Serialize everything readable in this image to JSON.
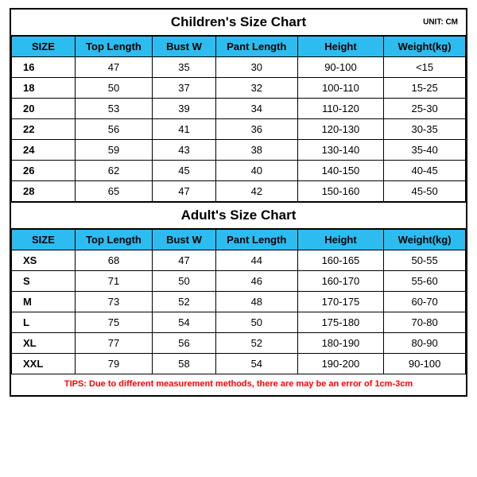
{
  "colors": {
    "header_bg": "#2dbcef",
    "border": "#000000",
    "tips_color": "#ff0000",
    "background": "#ffffff"
  },
  "children_chart": {
    "title": "Children's Size Chart",
    "unit_label": "UNIT: CM",
    "columns": [
      "SIZE",
      "Top Length",
      "Bust W",
      "Pant Length",
      "Height",
      "Weight(kg)"
    ],
    "rows": [
      [
        "16",
        "47",
        "35",
        "30",
        "90-100",
        "<15"
      ],
      [
        "18",
        "50",
        "37",
        "32",
        "100-110",
        "15-25"
      ],
      [
        "20",
        "53",
        "39",
        "34",
        "110-120",
        "25-30"
      ],
      [
        "22",
        "56",
        "41",
        "36",
        "120-130",
        "30-35"
      ],
      [
        "24",
        "59",
        "43",
        "38",
        "130-140",
        "35-40"
      ],
      [
        "26",
        "62",
        "45",
        "40",
        "140-150",
        "40-45"
      ],
      [
        "28",
        "65",
        "47",
        "42",
        "150-160",
        "45-50"
      ]
    ]
  },
  "adult_chart": {
    "title": "Adult's Size Chart",
    "columns": [
      "SIZE",
      "Top Length",
      "Bust W",
      "Pant Length",
      "Height",
      "Weight(kg)"
    ],
    "rows": [
      [
        "XS",
        "68",
        "47",
        "44",
        "160-165",
        "50-55"
      ],
      [
        "S",
        "71",
        "50",
        "46",
        "160-170",
        "55-60"
      ],
      [
        "M",
        "73",
        "52",
        "48",
        "170-175",
        "60-70"
      ],
      [
        "L",
        "75",
        "54",
        "50",
        "175-180",
        "70-80"
      ],
      [
        "XL",
        "77",
        "56",
        "52",
        "180-190",
        "80-90"
      ],
      [
        "XXL",
        "79",
        "58",
        "54",
        "190-200",
        "90-100"
      ]
    ]
  },
  "tips": "TIPS: Due to different measurement methods, there are may be an error of 1cm-3cm"
}
